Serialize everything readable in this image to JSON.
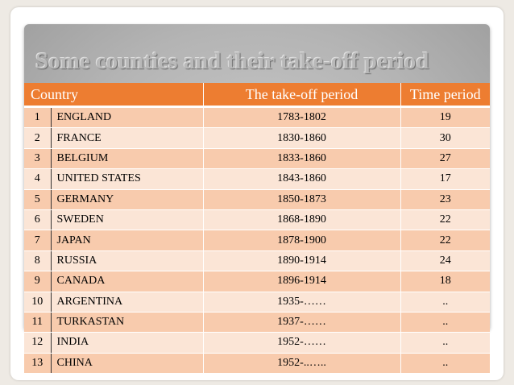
{
  "slide": {
    "title": "Some counties and their take-off period"
  },
  "table": {
    "headers": {
      "country": "Country",
      "takeoff": "The take-off period",
      "duration": "Time period"
    },
    "rows": [
      {
        "num": "1",
        "country": "ENGLAND",
        "period": "1783-1802",
        "duration": "19"
      },
      {
        "num": "2",
        "country": "FRANCE",
        "period": "1830-1860",
        "duration": "30"
      },
      {
        "num": "3",
        "country": "BELGIUM",
        "period": "1833-1860",
        "duration": "27"
      },
      {
        "num": "4",
        "country": "UNITED STATES",
        "period": "1843-1860",
        "duration": "17"
      },
      {
        "num": "5",
        "country": "GERMANY",
        "period": "1850-1873",
        "duration": "23"
      },
      {
        "num": "6",
        "country": "SWEDEN",
        "period": "1868-1890",
        "duration": "22"
      },
      {
        "num": "7",
        "country": "JAPAN",
        "period": "1878-1900",
        "duration": "22"
      },
      {
        "num": "8",
        "country": "RUSSIA",
        "period": "1890-1914",
        "duration": "24"
      },
      {
        "num": "9",
        "country": "CANADA",
        "period": "1896-1914",
        "duration": "18"
      },
      {
        "num": "10",
        "country": "ARGENTINA",
        "period": "1935-……",
        "duration": ".."
      },
      {
        "num": "11",
        "country": "TURKASTAN",
        "period": "1937-……",
        "duration": ".."
      },
      {
        "num": "12",
        "country": "INDIA",
        "period": "1952-……",
        "duration": ".."
      },
      {
        "num": "13",
        "country": "CHINA",
        "period": "1952-..…..",
        "duration": ".."
      }
    ]
  },
  "colors": {
    "header": "#ed7d31",
    "row_odd": "#f8cbad",
    "row_even": "#fbe5d6"
  }
}
